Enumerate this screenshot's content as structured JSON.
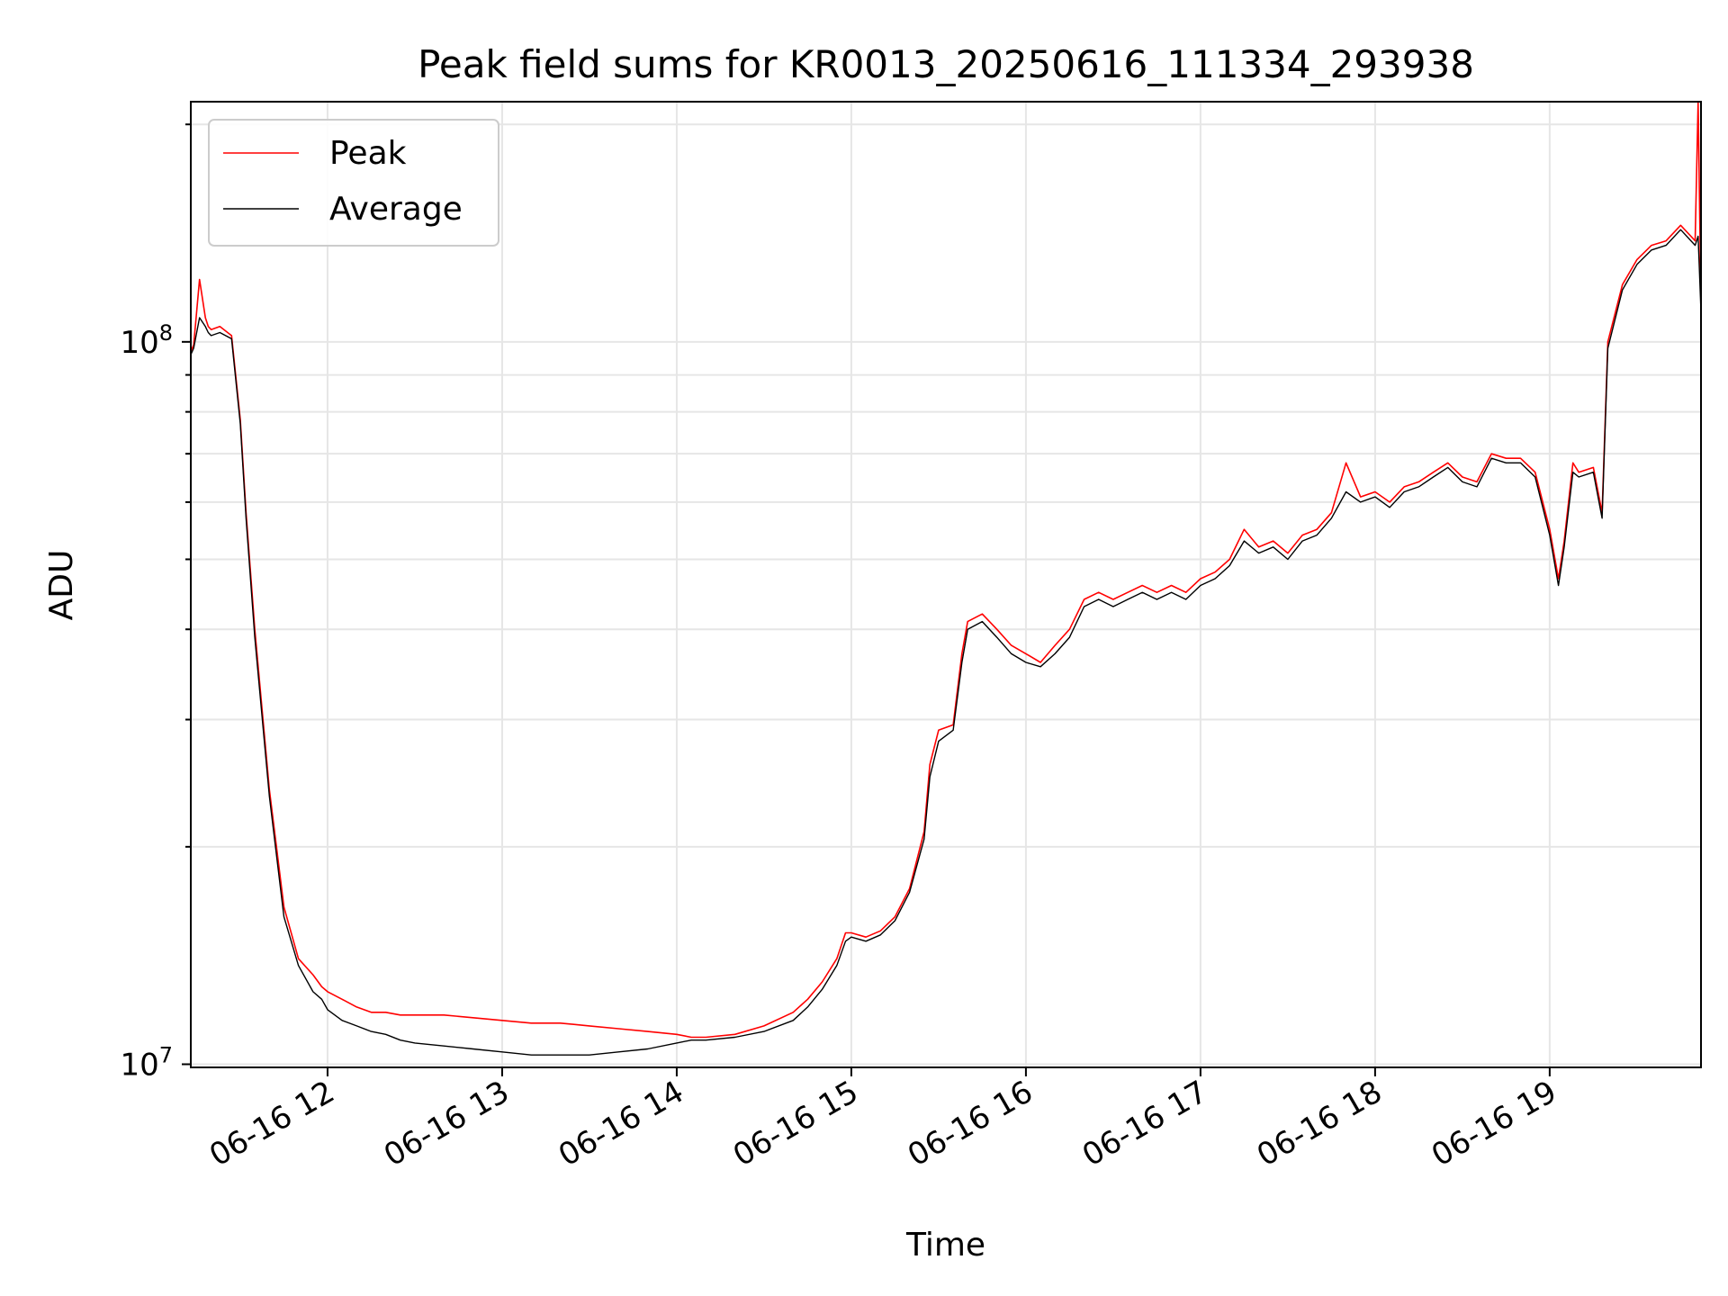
{
  "chart_data": {
    "type": "line",
    "title": "Peak field sums for KR0013_20250616_111334_293938",
    "xlabel": "Time",
    "ylabel": "ADU",
    "yscale": "log",
    "ylim": [
      9900000,
      215000000
    ],
    "xlim": [
      "06-16 11:13",
      "06-16 19:52"
    ],
    "x_ticks": [
      "06-16 12",
      "06-16 13",
      "06-16 14",
      "06-16 15",
      "06-16 16",
      "06-16 17",
      "06-16 18",
      "06-16 19"
    ],
    "y_ticks": [
      {
        "label": "10",
        "exp": "7",
        "value": 10000000
      },
      {
        "label": "10",
        "exp": "8",
        "value": 100000000
      }
    ],
    "grid": true,
    "legend_position": "top-left",
    "series": [
      {
        "name": "Peak",
        "color": "#ff0000",
        "x": [
          "06-16 11:13",
          "06-16 11:14",
          "06-16 11:16",
          "06-16 11:18",
          "06-16 11:19",
          "06-16 11:20",
          "06-16 11:23",
          "06-16 11:27",
          "06-16 11:30",
          "06-16 11:32",
          "06-16 11:35",
          "06-16 11:40",
          "06-16 11:45",
          "06-16 11:50",
          "06-16 11:55",
          "06-16 11:58",
          "06-16 12:00",
          "06-16 12:05",
          "06-16 12:10",
          "06-16 12:15",
          "06-16 12:20",
          "06-16 12:25",
          "06-16 12:30",
          "06-16 12:40",
          "06-16 12:50",
          "06-16 13:00",
          "06-16 13:10",
          "06-16 13:20",
          "06-16 13:30",
          "06-16 13:40",
          "06-16 13:50",
          "06-16 14:00",
          "06-16 14:05",
          "06-16 14:10",
          "06-16 14:20",
          "06-16 14:30",
          "06-16 14:40",
          "06-16 14:45",
          "06-16 14:50",
          "06-16 14:55",
          "06-16 14:58",
          "06-16 15:00",
          "06-16 15:05",
          "06-16 15:10",
          "06-16 15:15",
          "06-16 15:20",
          "06-16 15:25",
          "06-16 15:27",
          "06-16 15:30",
          "06-16 15:35",
          "06-16 15:38",
          "06-16 15:40",
          "06-16 15:45",
          "06-16 15:50",
          "06-16 15:55",
          "06-16 16:00",
          "06-16 16:05",
          "06-16 16:10",
          "06-16 16:15",
          "06-16 16:20",
          "06-16 16:25",
          "06-16 16:30",
          "06-16 16:35",
          "06-16 16:40",
          "06-16 16:45",
          "06-16 16:50",
          "06-16 16:55",
          "06-16 17:00",
          "06-16 17:05",
          "06-16 17:10",
          "06-16 17:15",
          "06-16 17:20",
          "06-16 17:25",
          "06-16 17:30",
          "06-16 17:35",
          "06-16 17:40",
          "06-16 17:45",
          "06-16 17:50",
          "06-16 17:55",
          "06-16 18:00",
          "06-16 18:05",
          "06-16 18:10",
          "06-16 18:15",
          "06-16 18:20",
          "06-16 18:25",
          "06-16 18:30",
          "06-16 18:35",
          "06-16 18:40",
          "06-16 18:45",
          "06-16 18:50",
          "06-16 18:55",
          "06-16 19:00",
          "06-16 19:03",
          "06-16 19:05",
          "06-16 19:08",
          "06-16 19:10",
          "06-16 19:15",
          "06-16 19:18",
          "06-16 19:20",
          "06-16 19:25",
          "06-16 19:30",
          "06-16 19:35",
          "06-16 19:40",
          "06-16 19:45",
          "06-16 19:50",
          "06-16 19:51",
          "06-16 19:52"
        ],
        "y": [
          97000000,
          99000000,
          122000000,
          108000000,
          105000000,
          104000000,
          105000000,
          102000000,
          78000000,
          58000000,
          40000000,
          24000000,
          16500000,
          14000000,
          13300000,
          12800000,
          12600000,
          12300000,
          12000000,
          11800000,
          11800000,
          11700000,
          11700000,
          11700000,
          11600000,
          11500000,
          11400000,
          11400000,
          11300000,
          11200000,
          11100000,
          11000000,
          10900000,
          10900000,
          11000000,
          11300000,
          11800000,
          12300000,
          13000000,
          14000000,
          15200000,
          15200000,
          15000000,
          15300000,
          16000000,
          17500000,
          21000000,
          26000000,
          29000000,
          29500000,
          37000000,
          41000000,
          42000000,
          40000000,
          38000000,
          37000000,
          36000000,
          38000000,
          40000000,
          44000000,
          45000000,
          44000000,
          45000000,
          46000000,
          45000000,
          46000000,
          45000000,
          47000000,
          48000000,
          50000000,
          55000000,
          52000000,
          53000000,
          51000000,
          54000000,
          55000000,
          58000000,
          68000000,
          61000000,
          62000000,
          60000000,
          63000000,
          64000000,
          66000000,
          68000000,
          65000000,
          64000000,
          70000000,
          69000000,
          69000000,
          66000000,
          55000000,
          47000000,
          53000000,
          68000000,
          66000000,
          67000000,
          58000000,
          100000000,
          120000000,
          130000000,
          136000000,
          138000000,
          145000000,
          138000000,
          215000000,
          112000000
        ]
      },
      {
        "name": "Average",
        "color": "#000000",
        "x": [
          "06-16 11:13",
          "06-16 11:14",
          "06-16 11:16",
          "06-16 11:18",
          "06-16 11:19",
          "06-16 11:20",
          "06-16 11:23",
          "06-16 11:27",
          "06-16 11:30",
          "06-16 11:32",
          "06-16 11:35",
          "06-16 11:40",
          "06-16 11:45",
          "06-16 11:50",
          "06-16 11:55",
          "06-16 11:58",
          "06-16 12:00",
          "06-16 12:05",
          "06-16 12:10",
          "06-16 12:15",
          "06-16 12:20",
          "06-16 12:25",
          "06-16 12:30",
          "06-16 12:40",
          "06-16 12:50",
          "06-16 13:00",
          "06-16 13:10",
          "06-16 13:20",
          "06-16 13:30",
          "06-16 13:40",
          "06-16 13:50",
          "06-16 14:00",
          "06-16 14:05",
          "06-16 14:10",
          "06-16 14:20",
          "06-16 14:30",
          "06-16 14:40",
          "06-16 14:45",
          "06-16 14:50",
          "06-16 14:55",
          "06-16 14:58",
          "06-16 15:00",
          "06-16 15:05",
          "06-16 15:10",
          "06-16 15:15",
          "06-16 15:20",
          "06-16 15:25",
          "06-16 15:27",
          "06-16 15:30",
          "06-16 15:35",
          "06-16 15:38",
          "06-16 15:40",
          "06-16 15:45",
          "06-16 15:50",
          "06-16 15:55",
          "06-16 16:00",
          "06-16 16:05",
          "06-16 16:10",
          "06-16 16:15",
          "06-16 16:20",
          "06-16 16:25",
          "06-16 16:30",
          "06-16 16:35",
          "06-16 16:40",
          "06-16 16:45",
          "06-16 16:50",
          "06-16 16:55",
          "06-16 17:00",
          "06-16 17:05",
          "06-16 17:10",
          "06-16 17:15",
          "06-16 17:20",
          "06-16 17:25",
          "06-16 17:30",
          "06-16 17:35",
          "06-16 17:40",
          "06-16 17:45",
          "06-16 17:50",
          "06-16 17:55",
          "06-16 18:00",
          "06-16 18:05",
          "06-16 18:10",
          "06-16 18:15",
          "06-16 18:20",
          "06-16 18:25",
          "06-16 18:30",
          "06-16 18:35",
          "06-16 18:40",
          "06-16 18:45",
          "06-16 18:50",
          "06-16 18:55",
          "06-16 19:00",
          "06-16 19:03",
          "06-16 19:05",
          "06-16 19:08",
          "06-16 19:10",
          "06-16 19:15",
          "06-16 19:18",
          "06-16 19:20",
          "06-16 19:25",
          "06-16 19:30",
          "06-16 19:35",
          "06-16 19:40",
          "06-16 19:45",
          "06-16 19:50",
          "06-16 19:51",
          "06-16 19:52"
        ],
        "y": [
          96000000,
          98000000,
          108000000,
          105000000,
          103000000,
          102000000,
          103000000,
          101000000,
          77000000,
          57000000,
          39000000,
          23500000,
          16000000,
          13700000,
          12600000,
          12300000,
          11900000,
          11500000,
          11300000,
          11100000,
          11000000,
          10800000,
          10700000,
          10600000,
          10500000,
          10400000,
          10300000,
          10300000,
          10300000,
          10400000,
          10500000,
          10700000,
          10800000,
          10800000,
          10900000,
          11100000,
          11500000,
          12000000,
          12700000,
          13700000,
          14800000,
          15000000,
          14800000,
          15100000,
          15800000,
          17300000,
          20500000,
          25000000,
          28000000,
          29000000,
          36000000,
          40000000,
          41000000,
          39000000,
          37000000,
          36000000,
          35500000,
          37000000,
          39000000,
          43000000,
          44000000,
          43000000,
          44000000,
          45000000,
          44000000,
          45000000,
          44000000,
          46000000,
          47000000,
          49000000,
          53000000,
          51000000,
          52000000,
          50000000,
          53000000,
          54000000,
          57000000,
          62000000,
          60000000,
          61000000,
          59000000,
          62000000,
          63000000,
          65000000,
          67000000,
          64000000,
          63000000,
          69000000,
          68000000,
          68000000,
          65000000,
          54000000,
          46000000,
          52000000,
          66000000,
          65000000,
          66000000,
          57000000,
          98000000,
          118000000,
          128000000,
          134000000,
          136000000,
          143000000,
          136000000,
          140000000,
          110000000
        ]
      }
    ]
  }
}
